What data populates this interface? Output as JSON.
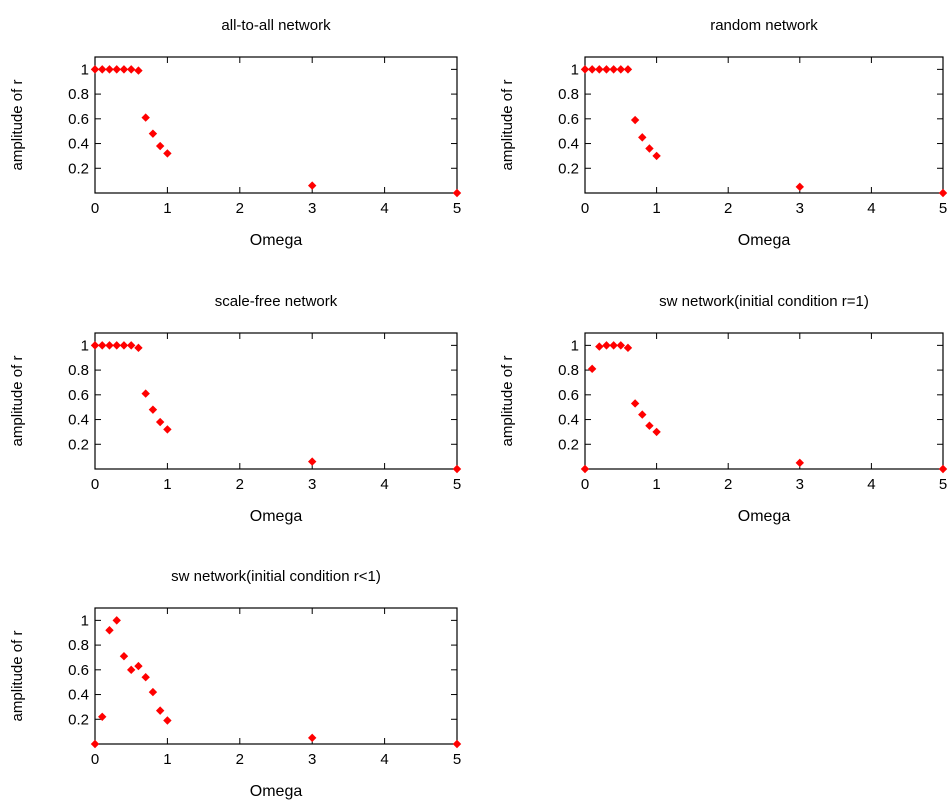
{
  "chart_data": [
    {
      "type": "scatter",
      "title": "all-to-all network",
      "xlabel": "Omega",
      "ylabel": "amplitude of r",
      "xlim": [
        0,
        5
      ],
      "ylim": [
        0,
        1.1
      ],
      "xticks": [
        "0",
        "1",
        "2",
        "3",
        "4",
        "5"
      ],
      "yticks": [
        "0.2",
        "0.4",
        "0.6",
        "0.8",
        "1"
      ],
      "color": "#ff0000",
      "series": [
        {
          "x": [
            0,
            0.1,
            0.2,
            0.3,
            0.4,
            0.5,
            0.6,
            0.7,
            0.8,
            0.9,
            1.0,
            3.0,
            5.0
          ],
          "y": [
            1.0,
            1.0,
            1.0,
            1.0,
            1.0,
            1.0,
            0.99,
            0.61,
            0.48,
            0.38,
            0.32,
            0.06,
            0.0
          ]
        }
      ]
    },
    {
      "type": "scatter",
      "title": "random network",
      "xlabel": "Omega",
      "ylabel": "amplitude of r",
      "xlim": [
        0,
        5
      ],
      "ylim": [
        0,
        1.1
      ],
      "xticks": [
        "0",
        "1",
        "2",
        "3",
        "4",
        "5"
      ],
      "yticks": [
        "0.2",
        "0.4",
        "0.6",
        "0.8",
        "1"
      ],
      "color": "#ff0000",
      "series": [
        {
          "x": [
            0,
            0.1,
            0.2,
            0.3,
            0.4,
            0.5,
            0.6,
            0.7,
            0.8,
            0.9,
            1.0,
            3.0,
            5.0
          ],
          "y": [
            1.0,
            1.0,
            1.0,
            1.0,
            1.0,
            1.0,
            1.0,
            0.59,
            0.45,
            0.36,
            0.3,
            0.05,
            0.0
          ]
        }
      ]
    },
    {
      "type": "scatter",
      "title": "scale-free network",
      "xlabel": "Omega",
      "ylabel": "amplitude of r",
      "xlim": [
        0,
        5
      ],
      "ylim": [
        0,
        1.1
      ],
      "xticks": [
        "0",
        "1",
        "2",
        "3",
        "4",
        "5"
      ],
      "yticks": [
        "0.2",
        "0.4",
        "0.6",
        "0.8",
        "1"
      ],
      "color": "#ff0000",
      "series": [
        {
          "x": [
            0,
            0.1,
            0.2,
            0.3,
            0.4,
            0.5,
            0.6,
            0.7,
            0.8,
            0.9,
            1.0,
            3.0,
            5.0
          ],
          "y": [
            1.0,
            1.0,
            1.0,
            1.0,
            1.0,
            1.0,
            0.98,
            0.61,
            0.48,
            0.38,
            0.32,
            0.06,
            0.0
          ]
        }
      ]
    },
    {
      "type": "scatter",
      "title": "sw network(initial condition r=1)",
      "xlabel": "Omega",
      "ylabel": "amplitude of r",
      "xlim": [
        0,
        5
      ],
      "ylim": [
        0,
        1.1
      ],
      "xticks": [
        "0",
        "1",
        "2",
        "3",
        "4",
        "5"
      ],
      "yticks": [
        "0.2",
        "0.4",
        "0.6",
        "0.8",
        "1"
      ],
      "color": "#ff0000",
      "series": [
        {
          "x": [
            0,
            0.1,
            0.2,
            0.3,
            0.4,
            0.5,
            0.6,
            0.7,
            0.8,
            0.9,
            1.0,
            3.0,
            5.0
          ],
          "y": [
            0.0,
            0.81,
            0.99,
            1.0,
            1.0,
            1.0,
            0.98,
            0.53,
            0.44,
            0.35,
            0.3,
            0.05,
            0.0
          ]
        }
      ]
    },
    {
      "type": "scatter",
      "title": "sw network(initial condition r<1)",
      "xlabel": "Omega",
      "ylabel": "amplitude of r",
      "xlim": [
        0,
        5
      ],
      "ylim": [
        0,
        1.1
      ],
      "xticks": [
        "0",
        "1",
        "2",
        "3",
        "4",
        "5"
      ],
      "yticks": [
        "0.2",
        "0.4",
        "0.6",
        "0.8",
        "1"
      ],
      "color": "#ff0000",
      "series": [
        {
          "x": [
            0,
            0.1,
            0.2,
            0.3,
            0.4,
            0.5,
            0.6,
            0.7,
            0.8,
            0.9,
            1.0,
            3.0,
            5.0
          ],
          "y": [
            0.0,
            0.22,
            0.92,
            1.0,
            0.71,
            0.6,
            0.63,
            0.54,
            0.42,
            0.27,
            0.19,
            0.05,
            0.0
          ]
        }
      ]
    }
  ]
}
